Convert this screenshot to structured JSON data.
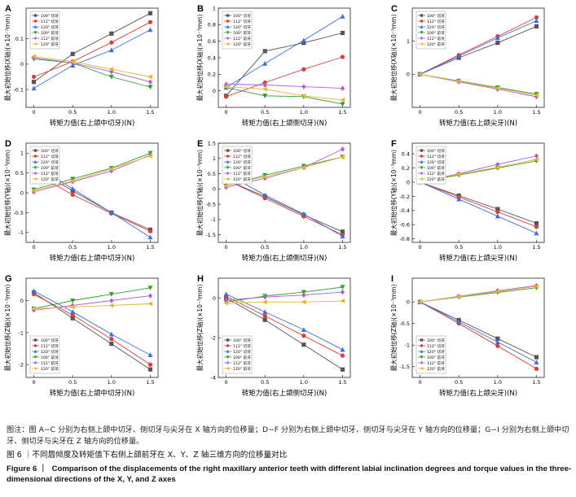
{
  "legend_labels": [
    "100° 切牙",
    "112° 切牙",
    "120° 切牙",
    "100° 前牙",
    "112° 前牙",
    "120° 前牙"
  ],
  "chart_data": [
    {
      "panel": "A",
      "type": "line",
      "x": [
        0,
        0.5,
        1,
        1.5
      ],
      "xlim": [
        -0.1,
        1.6
      ],
      "xticks": [
        "0",
        "0.5",
        "1.0",
        "1.5"
      ],
      "ylim": [
        -0.17,
        0.22
      ],
      "yticks": [
        -0.1,
        0,
        0.1
      ],
      "xlabel": "转矩力值(右上颌中切牙)(N)",
      "ylabel": "最大初始位移(X轴)(×10⁻³mm)",
      "legend": "top-left",
      "series": [
        {
          "name": "100° 切牙",
          "values": [
            -0.07,
            0.04,
            0.12,
            0.2
          ]
        },
        {
          "name": "112° 切牙",
          "values": [
            -0.05,
            0.01,
            0.085,
            0.165
          ]
        },
        {
          "name": "120° 切牙",
          "values": [
            -0.095,
            -0.005,
            0.055,
            0.135
          ]
        },
        {
          "name": "100° 前牙",
          "values": [
            0.02,
            0.005,
            -0.05,
            -0.09
          ]
        },
        {
          "name": "112° 前牙",
          "values": [
            0.025,
            0.005,
            -0.03,
            -0.07
          ]
        },
        {
          "name": "120° 前牙",
          "values": [
            0.03,
            0.01,
            -0.02,
            -0.05
          ]
        }
      ]
    },
    {
      "panel": "B",
      "type": "line",
      "x": [
        0,
        0.5,
        1,
        1.5
      ],
      "xlim": [
        -0.1,
        1.6
      ],
      "xticks": [
        "0",
        "0.5",
        "1.0",
        "1.5"
      ],
      "ylim": [
        -0.2,
        1.0
      ],
      "yticks": [
        0,
        0.2,
        0.4,
        0.6,
        0.8,
        1.0
      ],
      "xlabel": "转矩力值(右上颌侧切牙)(N)",
      "ylabel": "最大初始位移(X轴)(×10⁻³mm)",
      "legend": "top-left",
      "series": [
        {
          "name": "100° 切牙",
          "values": [
            -0.06,
            0.48,
            0.58,
            0.7
          ]
        },
        {
          "name": "112° 切牙",
          "values": [
            -0.07,
            0.1,
            0.26,
            0.41
          ]
        },
        {
          "name": "120° 切牙",
          "values": [
            0.04,
            0.33,
            0.61,
            0.9
          ]
        },
        {
          "name": "100° 前牙",
          "values": [
            0.04,
            -0.06,
            -0.07,
            -0.16
          ]
        },
        {
          "name": "112° 前牙",
          "values": [
            0.08,
            0.07,
            0.05,
            0.03
          ]
        },
        {
          "name": "120° 前牙",
          "values": [
            0.05,
            0.02,
            -0.06,
            -0.11
          ]
        }
      ]
    },
    {
      "panel": "C",
      "type": "line",
      "x": [
        0,
        0.5,
        1,
        1.5
      ],
      "xlim": [
        -0.1,
        1.6
      ],
      "xticks": [
        "0",
        "0.5",
        "1.0",
        "1.5"
      ],
      "ylim": [
        -1.0,
        2.0
      ],
      "yticks": [
        0,
        1
      ],
      "xlabel": "转矩力值(右上颌尖牙)(N)",
      "ylabel": "最大初始位移(X轴)(×10⁻³mm)",
      "legend": "top-left",
      "series": [
        {
          "name": "100° 切牙",
          "values": [
            0,
            0.5,
            0.95,
            1.45
          ]
        },
        {
          "name": "112° 切牙",
          "values": [
            0,
            0.58,
            1.15,
            1.72
          ]
        },
        {
          "name": "120° 切牙",
          "values": [
            0,
            0.55,
            1.1,
            1.62
          ]
        },
        {
          "name": "100° 前牙",
          "values": [
            0,
            -0.2,
            -0.4,
            -0.6
          ]
        },
        {
          "name": "112° 前牙",
          "values": [
            0,
            -0.23,
            -0.45,
            -0.68
          ]
        },
        {
          "name": "120° 前牙",
          "values": [
            0,
            -0.21,
            -0.42,
            -0.63
          ]
        }
      ]
    },
    {
      "panel": "D",
      "type": "line",
      "x": [
        0,
        0.5,
        1,
        1.5
      ],
      "xlim": [
        -0.1,
        1.6
      ],
      "xticks": [
        "0",
        "0.5",
        "1.0",
        "1.5"
      ],
      "ylim": [
        -1.25,
        1.25
      ],
      "yticks": [
        -1.0,
        -0.5,
        0,
        0.5,
        1.0
      ],
      "xlabel": "转矩力值(右上颌中切牙)(N)",
      "ylabel": "最大初始位移(Y轴)(×10⁻³mm)",
      "legend": "top-left",
      "series": [
        {
          "name": "100° 切牙",
          "values": [
            0.62,
            0.05,
            -0.5,
            -0.93
          ]
        },
        {
          "name": "112° 切牙",
          "values": [
            0.5,
            -0.05,
            -0.52,
            -0.97
          ]
        },
        {
          "name": "120° 切牙",
          "values": [
            0.72,
            0.1,
            -0.5,
            -1.12
          ]
        },
        {
          "name": "100° 前牙",
          "values": [
            0.08,
            0.35,
            0.62,
            1.0
          ]
        },
        {
          "name": "112° 前牙",
          "values": [
            0.02,
            0.28,
            0.55,
            0.95
          ]
        },
        {
          "name": "120° 前牙",
          "values": [
            0.05,
            0.3,
            0.6,
            0.93
          ]
        }
      ]
    },
    {
      "panel": "E",
      "type": "line",
      "x": [
        0,
        0.5,
        1,
        1.5
      ],
      "xlim": [
        -0.1,
        1.6
      ],
      "xticks": [
        "0",
        "0.5",
        "1.0",
        "1.5"
      ],
      "ylim": [
        -1.75,
        1.5
      ],
      "yticks": [
        -1.5,
        -1.0,
        -0.5,
        0,
        0.5,
        1.0,
        1.5
      ],
      "xlabel": "转矩力值(右上颌侧切牙)(N)",
      "ylabel": "最大初始位移(Y轴)(×10⁻³mm)",
      "legend": "top-left",
      "series": [
        {
          "name": "100° 切牙",
          "values": [
            0.3,
            -0.25,
            -0.85,
            -1.4
          ]
        },
        {
          "name": "112° 切牙",
          "values": [
            0.3,
            -0.3,
            -0.9,
            -1.5
          ]
        },
        {
          "name": "120° 切牙",
          "values": [
            0.5,
            -0.2,
            -0.82,
            -1.55
          ]
        },
        {
          "name": "100° 前牙",
          "values": [
            0.1,
            0.45,
            0.75,
            1.05
          ]
        },
        {
          "name": "112° 前牙",
          "values": [
            0.05,
            0.35,
            0.7,
            1.3
          ]
        },
        {
          "name": "120° 前牙",
          "values": [
            0.1,
            0.4,
            0.7,
            1.05
          ]
        }
      ]
    },
    {
      "panel": "F",
      "type": "line",
      "x": [
        0,
        0.5,
        1,
        1.5
      ],
      "xlim": [
        -0.1,
        1.6
      ],
      "xticks": [
        "0",
        "0.5",
        "1.0",
        "1.5"
      ],
      "ylim": [
        -0.85,
        0.55
      ],
      "yticks": [
        -0.8,
        -0.6,
        -0.4,
        -0.2,
        0,
        0.2,
        0.4
      ],
      "xlabel": "转矩力值(右上颌尖牙)(N)",
      "ylabel": "最大初始位移(Y轴)(×10⁻³mm)",
      "legend": "top-left",
      "series": [
        {
          "name": "100° 切牙",
          "values": [
            0,
            -0.19,
            -0.38,
            -0.58
          ]
        },
        {
          "name": "112° 切牙",
          "values": [
            0,
            -0.21,
            -0.42,
            -0.63
          ]
        },
        {
          "name": "120° 切牙",
          "values": [
            0,
            -0.24,
            -0.48,
            -0.72
          ]
        },
        {
          "name": "100° 前牙",
          "values": [
            0,
            0.1,
            0.2,
            0.3
          ]
        },
        {
          "name": "112° 前牙",
          "values": [
            0,
            0.12,
            0.25,
            0.37
          ]
        },
        {
          "name": "120° 前牙",
          "values": [
            0,
            0.11,
            0.21,
            0.32
          ]
        }
      ]
    },
    {
      "panel": "G",
      "type": "line",
      "x": [
        0,
        0.5,
        1,
        1.5
      ],
      "xlim": [
        -0.1,
        1.6
      ],
      "xticks": [
        "0",
        "0.5",
        "1.0",
        "1.5"
      ],
      "ylim": [
        -2.4,
        0.7
      ],
      "yticks": [
        -2,
        -1,
        0
      ],
      "xlabel": "转矩力值(右上颌中切牙)(N)",
      "ylabel": "最大初始位移(Z轴)(×10⁻³mm)",
      "legend": "bottom-left",
      "series": [
        {
          "name": "100° 切牙",
          "values": [
            0.25,
            -0.55,
            -1.35,
            -2.15
          ]
        },
        {
          "name": "112° 切牙",
          "values": [
            0.2,
            -0.45,
            -1.2,
            -2.0
          ]
        },
        {
          "name": "120° 切牙",
          "values": [
            0.3,
            -0.35,
            -1.05,
            -1.7
          ]
        },
        {
          "name": "100° 前牙",
          "values": [
            -0.25,
            0.0,
            0.2,
            0.4
          ]
        },
        {
          "name": "112° 前牙",
          "values": [
            -0.3,
            -0.15,
            0.0,
            0.15
          ]
        },
        {
          "name": "120° 前牙",
          "values": [
            -0.25,
            -0.2,
            -0.15,
            -0.1
          ]
        }
      ]
    },
    {
      "panel": "H",
      "type": "line",
      "x": [
        0,
        0.5,
        1,
        1.5
      ],
      "xlim": [
        -0.1,
        1.6
      ],
      "xticks": [
        "0",
        "0.5",
        "1.0",
        "1.5"
      ],
      "ylim": [
        -4.0,
        1.0
      ],
      "yticks": [
        -4,
        -2,
        0
      ],
      "xlabel": "转矩力值(右上颌侧切牙)(N)",
      "ylabel": "最大初始位移(Z轴)(×10⁻³mm)",
      "legend": "bottom-left",
      "series": [
        {
          "name": "100° 切牙",
          "values": [
            0.0,
            -1.1,
            -2.35,
            -3.6
          ]
        },
        {
          "name": "112° 切牙",
          "values": [
            0.1,
            -0.9,
            -1.9,
            -2.9
          ]
        },
        {
          "name": "120° 切牙",
          "values": [
            0.2,
            -0.7,
            -1.6,
            -2.6
          ]
        },
        {
          "name": "100° 前牙",
          "values": [
            -0.2,
            0.1,
            0.3,
            0.55
          ]
        },
        {
          "name": "112° 前牙",
          "values": [
            -0.1,
            0.05,
            0.15,
            0.3
          ]
        },
        {
          "name": "120° 前牙",
          "values": [
            -0.25,
            -0.2,
            -0.2,
            -0.15
          ]
        }
      ]
    },
    {
      "panel": "I",
      "type": "line",
      "x": [
        0,
        0.5,
        1,
        1.5
      ],
      "xlim": [
        -0.1,
        1.6
      ],
      "xticks": [
        "0",
        "0.5",
        "1.0",
        "1.5"
      ],
      "ylim": [
        -1.75,
        0.55
      ],
      "yticks": [
        -1.5,
        -1.0,
        -0.5,
        0
      ],
      "xlabel": "转矩力值(右上颌尖牙)(N)",
      "ylabel": "最大初始位移(Z轴)(×10⁻³mm)",
      "legend": "bottom-left",
      "series": [
        {
          "name": "100° 切牙",
          "values": [
            0,
            -0.42,
            -0.85,
            -1.28
          ]
        },
        {
          "name": "112° 切牙",
          "values": [
            0,
            -0.5,
            -1.02,
            -1.55
          ]
        },
        {
          "name": "120° 切牙",
          "values": [
            0,
            -0.46,
            -0.93,
            -1.4
          ]
        },
        {
          "name": "100° 前牙",
          "values": [
            0,
            0.11,
            0.22,
            0.33
          ]
        },
        {
          "name": "112° 前牙",
          "values": [
            0,
            0.13,
            0.26,
            0.38
          ]
        },
        {
          "name": "120° 前牙",
          "values": [
            0,
            0.12,
            0.24,
            0.36
          ]
        }
      ]
    }
  ],
  "colors": [
    "#555555",
    "#e03a3a",
    "#3a6fe0",
    "#2ca02c",
    "#b05cd8",
    "#e8b530"
  ],
  "caption": {
    "note": "图注：图 A−C 分别为右侧上颌中切牙、侧切牙与尖牙在 X 轴方向的位移量；D−F 分别为右侧上颌中切牙、侧切牙与尖牙在 Y 轴方向的位移量；G−I 分别为右侧上颌中切牙、侧切牙与尖牙在 Z 轴方向的位移量。",
    "figure_cn": "图 6 ｜不同唇倾度及转矩值下右侧上颌前牙在 X、Y、Z 轴三维方向的位移量对比",
    "figure_en_label": "Figure 6 ｜",
    "figure_en": "Comparison of the displacements of the right maxillary anterior teeth with different labial inclination degrees and torque values in the three-dimensional directions of the X, Y, and Z axes"
  }
}
